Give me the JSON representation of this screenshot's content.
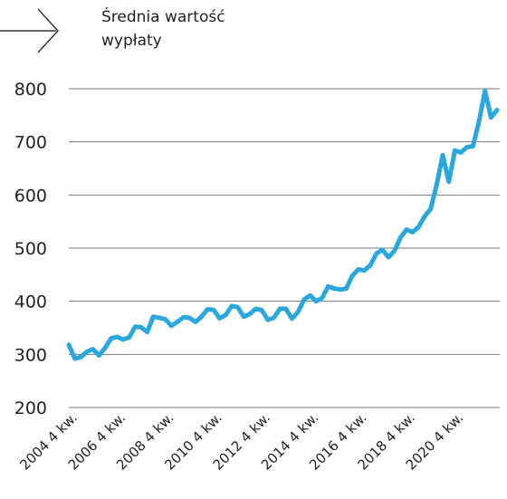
{
  "chart_data": {
    "type": "line",
    "title_lines": [
      "Średnia wartość",
      "wypłaty"
    ],
    "xlabel": "",
    "ylabel": "",
    "ylim": [
      200,
      800
    ],
    "yticks": [
      200,
      300,
      400,
      500,
      600,
      700,
      800
    ],
    "grid": "horizontal",
    "line_color": "#2aa7dc",
    "x_tick_labels": [
      "2004 4 kw.",
      "2006 4 kw.",
      "2008 4 kw.",
      "2010 4 kw.",
      "2012 4 kw.",
      "2014 4 kw.",
      "2016 4 kw.",
      "2018 4 kw.",
      "2020 4 kw."
    ],
    "x_start": "2004 4 kw.",
    "series": [
      {
        "values": [
          318,
          292,
          295,
          305,
          310,
          298,
          312,
          330,
          333,
          328,
          332,
          352,
          351,
          342,
          371,
          369,
          366,
          354,
          361,
          370,
          369,
          361,
          371,
          385,
          384,
          368,
          374,
          391,
          389,
          371,
          376,
          386,
          383,
          365,
          369,
          386,
          386,
          367,
          380,
          403,
          411,
          400,
          406,
          428,
          424,
          422,
          424,
          448,
          460,
          458,
          468,
          490,
          497,
          483,
          495,
          520,
          535,
          530,
          540,
          560,
          574,
          620,
          675,
          625,
          684,
          680,
          690,
          692,
          738,
          796,
          746,
          760
        ]
      }
    ]
  }
}
